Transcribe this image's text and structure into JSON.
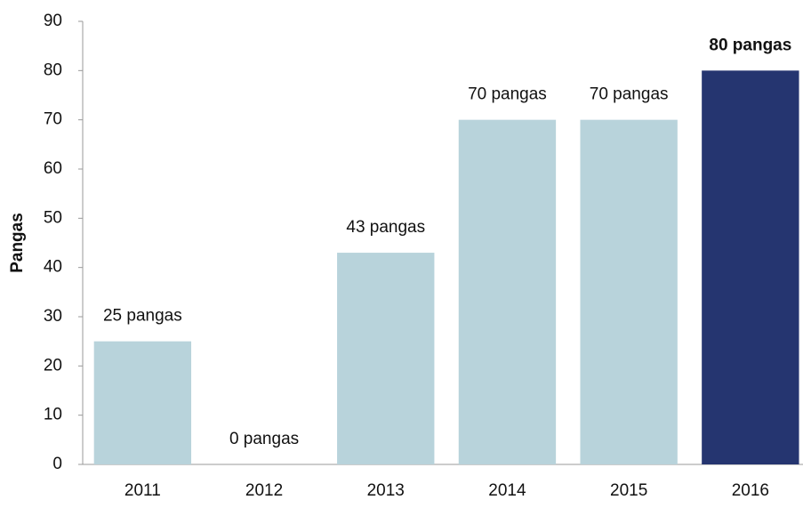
{
  "chart_data": {
    "type": "bar",
    "y_label": "Pangas",
    "categories": [
      "2011",
      "2012",
      "2013",
      "2014",
      "2015",
      "2016"
    ],
    "values": [
      25,
      0,
      43,
      70,
      70,
      80
    ],
    "value_labels": [
      "25 pangas",
      "0 pangas",
      "43 pangas",
      "70 pangas",
      "70 pangas",
      "80 pangas"
    ],
    "colors": [
      "#b8d3db",
      "#b8d3db",
      "#b8d3db",
      "#b8d3db",
      "#b8d3db",
      "#253570"
    ],
    "bold_labels": [
      false,
      false,
      false,
      false,
      false,
      true
    ],
    "ylim": [
      0,
      90
    ],
    "yticks": [
      0,
      10,
      20,
      30,
      40,
      50,
      60,
      70,
      80,
      90
    ],
    "grid": false
  }
}
